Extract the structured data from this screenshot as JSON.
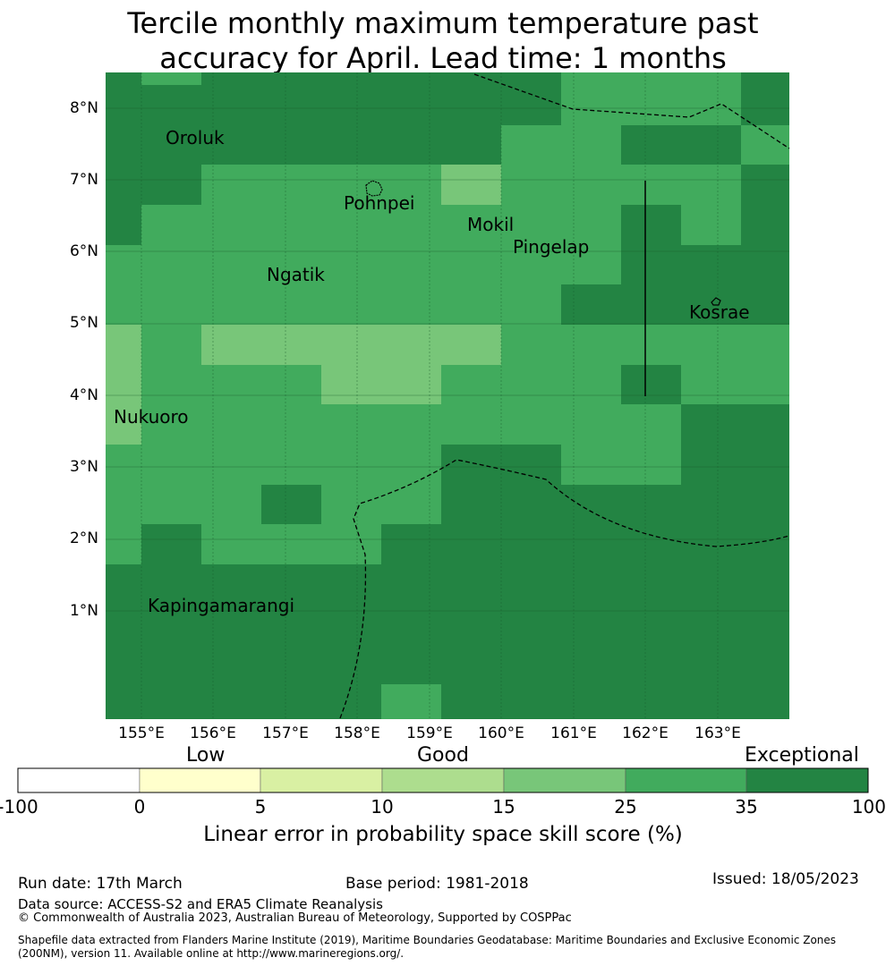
{
  "title": {
    "line1": "Tercile monthly maximum temperature past",
    "line2": "accuracy for April. Lead time: 1 months"
  },
  "map": {
    "lat_labels": [
      "8°N",
      "7°N",
      "6°N",
      "5°N",
      "4°N",
      "3°N",
      "2°N",
      "1°N"
    ],
    "lon_labels": [
      "155°E",
      "156°E",
      "157°E",
      "158°E",
      "159°E",
      "160°E",
      "161°E",
      "162°E",
      "163°E"
    ],
    "places": [
      "Oroluk",
      "Pohnpei",
      "Mokil",
      "Pingelap",
      "Ngatik",
      "Kosrae",
      "Nukuoro",
      "Kapingamarangi"
    ],
    "colors": {
      "c15_25": "#78c679",
      "c25_35": "#41ab5d",
      "c35_100": "#238443"
    }
  },
  "colorbar": {
    "headings": [
      "Low",
      "Good",
      "Exceptional"
    ],
    "ticks": [
      "-100",
      "0",
      "5",
      "10",
      "15",
      "25",
      "35",
      "100"
    ],
    "colors": [
      "#ffffff",
      "#ffffcc",
      "#d9f0a3",
      "#addd8e",
      "#78c679",
      "#41ab5d",
      "#238443"
    ],
    "title": "Linear error in probability space skill score (%)"
  },
  "footer": {
    "run_date": "Run date: 17th March",
    "base_period": "Base period: 1981-2018",
    "issued": "Issued: 18/05/2023",
    "data_source": "Data source: ACCESS-S2 and ERA5 Climate Reanalysis",
    "copyright": "© Commonwealth of Australia 2023, Australian Bureau of Meteorology, Supported by COSPPac",
    "shapefile_line1": "Shapefile data extracted from Flanders Marine Institute (2019), Maritime Boundaries Geodatabase: Maritime Boundaries and Exclusive Economic Zones",
    "shapefile_line2": "(200NM), version 11. Available online at http://www.marineregions.org/."
  }
}
